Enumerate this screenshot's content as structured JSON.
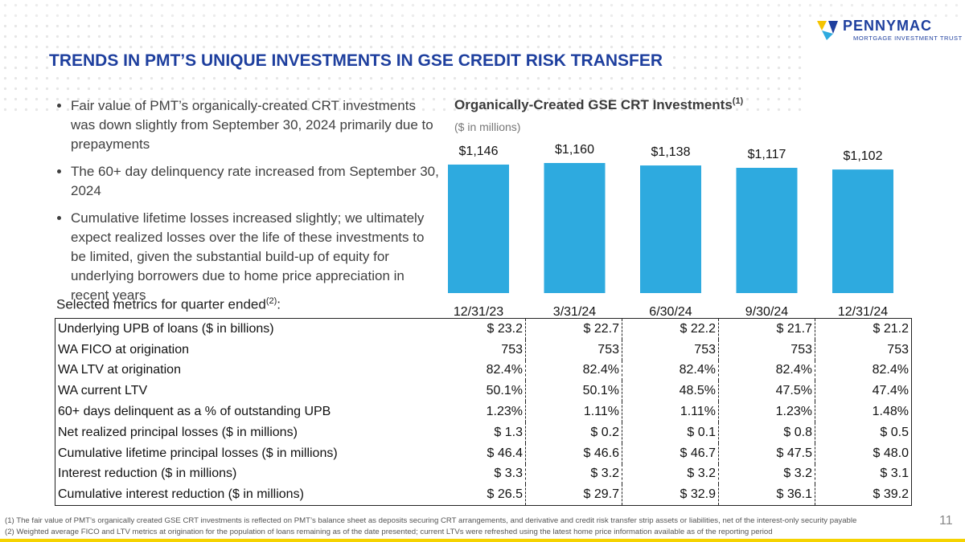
{
  "header": {
    "title": "TRENDS IN PMT’S UNIQUE INVESTMENTS IN GSE CREDIT RISK TRANSFER",
    "logo": {
      "name": "PENNYMAC",
      "tagline": "MORTGAGE INVESTMENT TRUST"
    }
  },
  "bullets": [
    "Fair value of PMT’s organically-created CRT investments was down slightly from September 30, 2024 primarily due to  prepayments",
    "The 60+ day delinquency rate increased from September 30, 2024",
    "Cumulative lifetime losses increased slightly; we ultimately expect realized losses over the life of these investments to be limited, given the substantial build-up of equity for underlying borrowers due to home price appreciation in recent years"
  ],
  "chart_data": {
    "type": "bar",
    "title": "Organically-Created GSE CRT Investments",
    "title_note": "(1)",
    "subtitle": "($ in millions)",
    "categories": [
      "12/31/23",
      "3/31/24",
      "6/30/24",
      "9/30/24",
      "12/31/24"
    ],
    "values": [
      1146,
      1160,
      1138,
      1117,
      1102
    ],
    "value_labels": [
      "$1,146",
      "$1,160",
      "$1,138",
      "$1,117",
      "$1,102"
    ],
    "color": "#2eaadf"
  },
  "table": {
    "label_parts": [
      "Selected metrics for quarter ended",
      "(2)",
      ":"
    ],
    "rows": [
      [
        "Underlying UPB of loans ($ in billions)",
        "$ 23.2",
        "$ 22.7",
        "$ 22.2",
        "$ 21.7",
        "$ 21.2"
      ],
      [
        "WA FICO at origination",
        "753",
        "753",
        "753",
        "753",
        "753"
      ],
      [
        "WA LTV at origination",
        "82.4%",
        "82.4%",
        "82.4%",
        "82.4%",
        "82.4%"
      ],
      [
        "WA current LTV",
        "50.1%",
        "50.1%",
        "48.5%",
        "47.5%",
        "47.4%"
      ],
      [
        "60+ days delinquent as a % of outstanding UPB",
        "1.23%",
        "1.11%",
        "1.11%",
        "1.23%",
        "1.48%"
      ],
      [
        "Net realized principal losses ($ in millions)",
        "$ 1.3",
        "$ 0.2",
        "$ 0.1",
        "$ 0.8",
        "$ 0.5"
      ],
      [
        "Cumulative lifetime principal losses ($ in millions)",
        "$ 46.4",
        "$ 46.6",
        "$ 46.7",
        "$ 47.5",
        "$ 48.0"
      ],
      [
        "Interest reduction ($ in millions)",
        "$ 3.3",
        "$ 3.2",
        "$ 3.2",
        "$ 3.2",
        "$ 3.1"
      ],
      [
        "Cumulative interest reduction ($ in millions)",
        "$ 26.5",
        "$ 29.7",
        "$ 32.9",
        "$ 36.1",
        "$ 39.2"
      ]
    ]
  },
  "footnotes": [
    "(1) The fair value of PMT’s organically created GSE CRT investments is reflected on PMT’s balance sheet as deposits securing CRT arrangements, and derivative and credit risk transfer strip assets or liabilities, net of the interest-only security payable",
    "(2) Weighted average FICO and LTV metrics at origination for the population of loans remaining as of the date presented; current LTVs were refreshed using the latest home price information available as of the reporting period"
  ],
  "page_number": "11"
}
